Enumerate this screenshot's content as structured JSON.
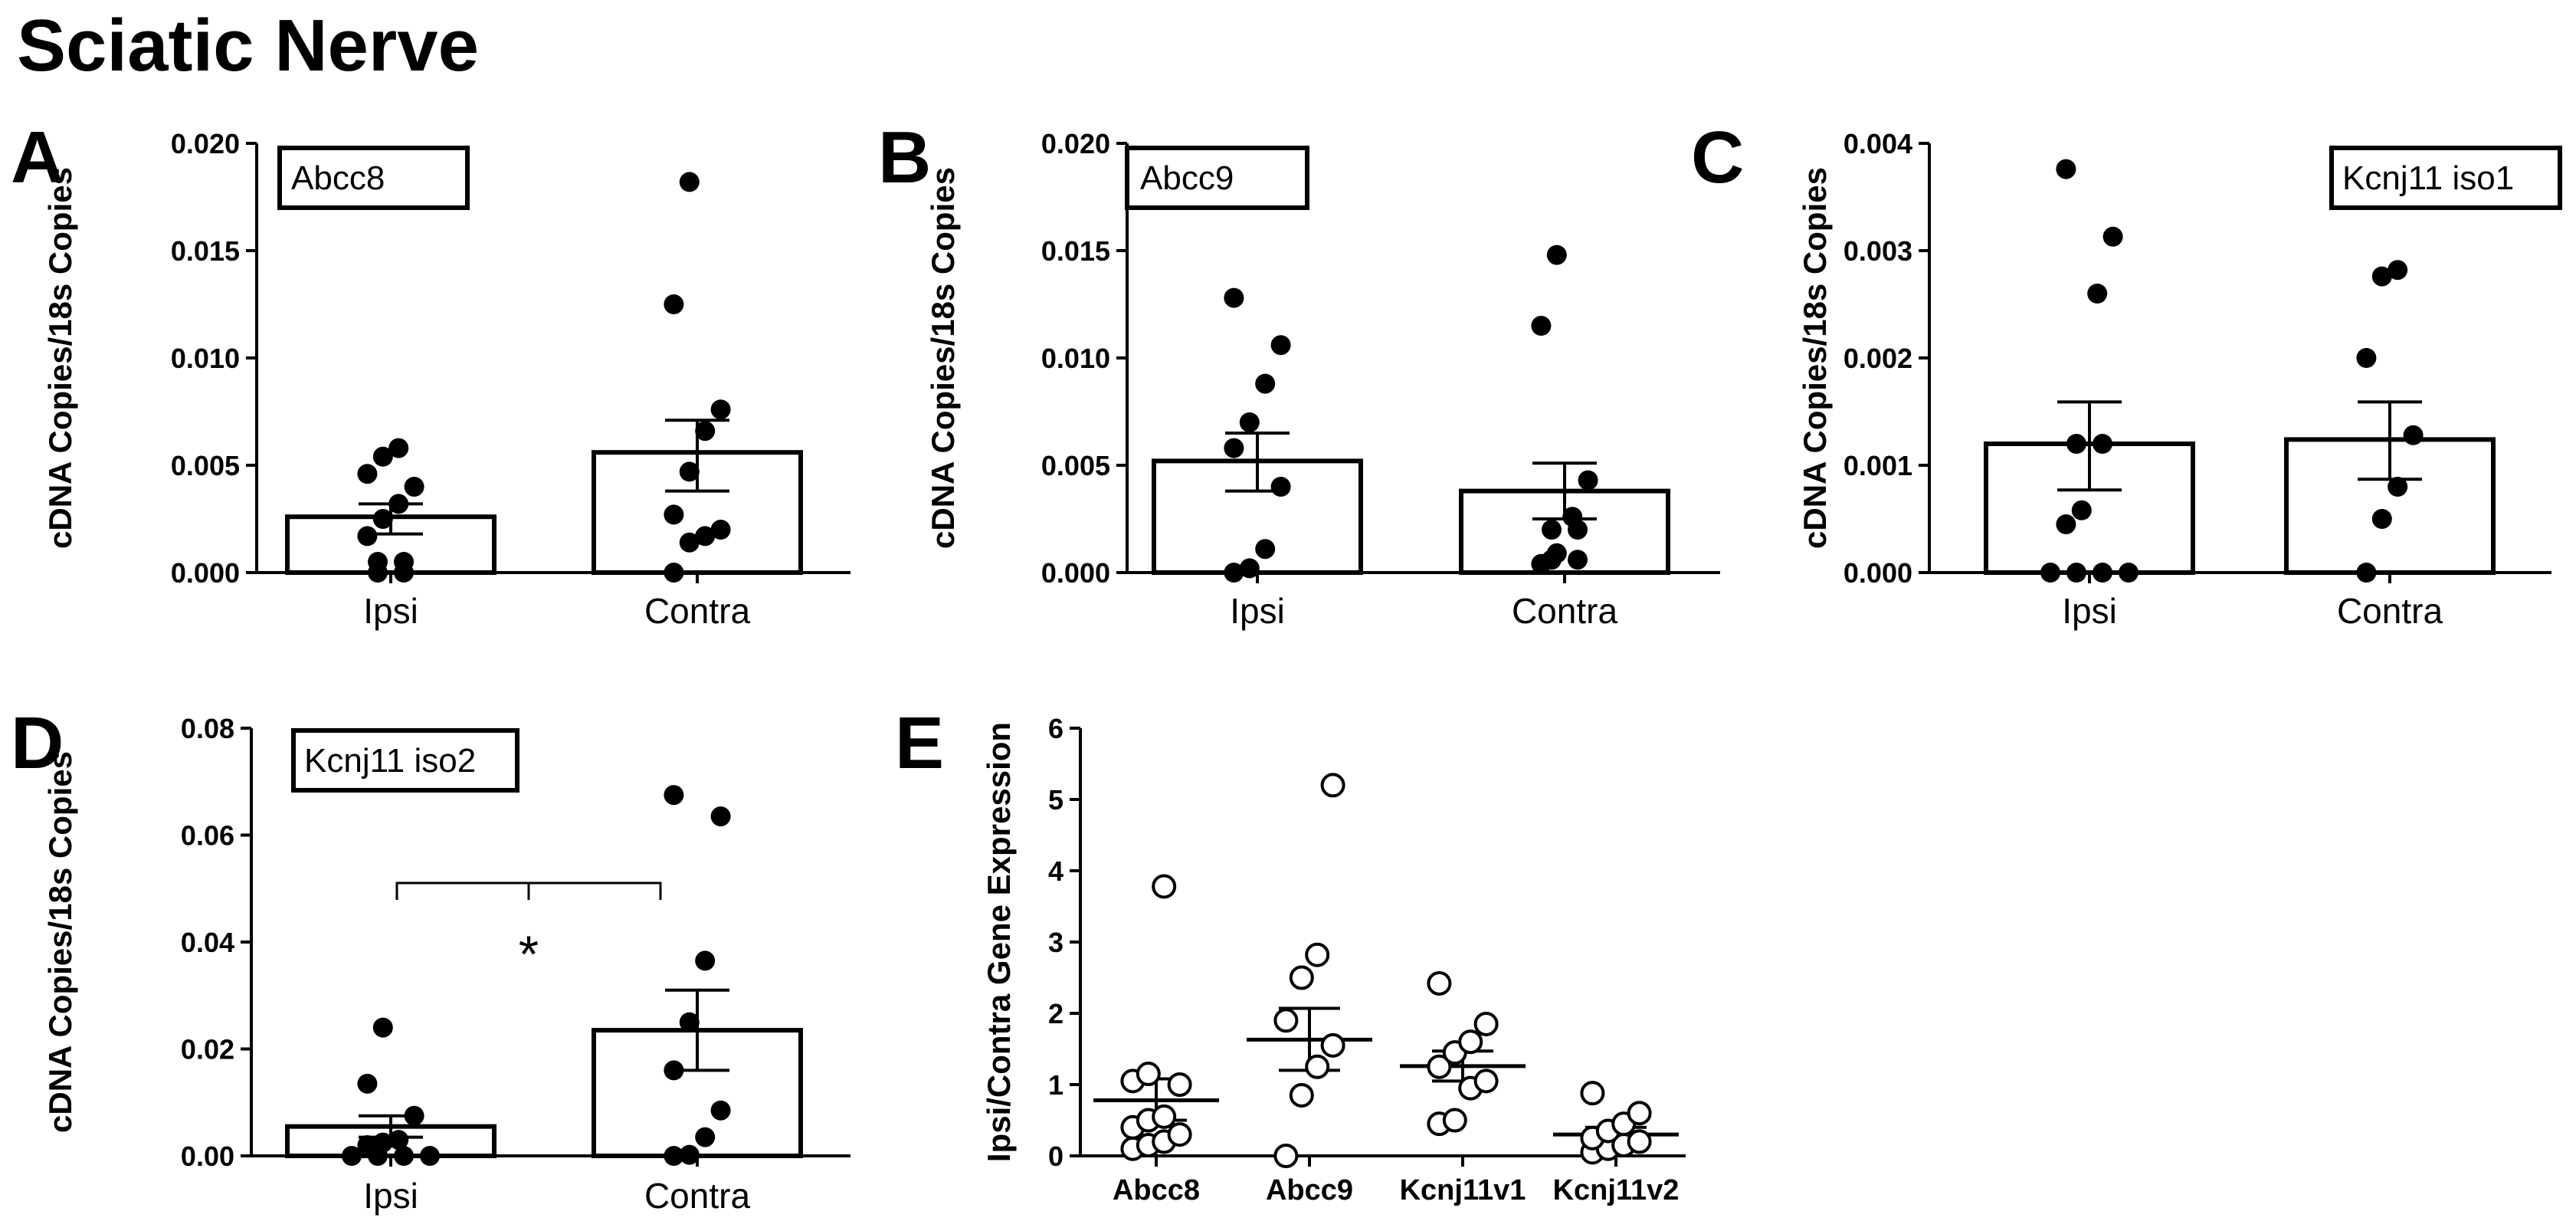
{
  "figure_title": "Sciatic Nerve",
  "significance_label": "*",
  "chart_data": [
    {
      "panel": "A",
      "type": "bar",
      "gene_label": "Abcc8",
      "ylabel": "cDNA Copies/18s Copies",
      "ylim": [
        0,
        0.02
      ],
      "yticks": [
        "0.000",
        "0.005",
        "0.010",
        "0.015",
        "0.020"
      ],
      "categories": [
        "Ipsi",
        "Contra"
      ],
      "bars": [
        {
          "name": "Ipsi",
          "mean": 0.0026,
          "sem_low": 0.0018,
          "sem_high": 0.0032,
          "points": [
            0.0,
            0.0,
            0.0005,
            0.0005,
            0.0017,
            0.0025,
            0.0032,
            0.004,
            0.0046,
            0.0054,
            0.0058
          ]
        },
        {
          "name": "Contra",
          "mean": 0.0056,
          "sem_low": 0.0038,
          "sem_high": 0.0071,
          "points": [
            0.0,
            0.0014,
            0.0017,
            0.002,
            0.0027,
            0.0047,
            0.0066,
            0.0076,
            0.0125,
            0.0182
          ]
        }
      ]
    },
    {
      "panel": "B",
      "type": "bar",
      "gene_label": "Abcc9",
      "ylabel": "cDNA Copies/18s Copies",
      "ylim": [
        0,
        0.02
      ],
      "yticks": [
        "0.000",
        "0.005",
        "0.010",
        "0.015",
        "0.020"
      ],
      "categories": [
        "Ipsi",
        "Contra"
      ],
      "bars": [
        {
          "name": "Ipsi",
          "mean": 0.0052,
          "sem_low": 0.0038,
          "sem_high": 0.0065,
          "points": [
            0.0,
            0.0002,
            0.0011,
            0.004,
            0.0058,
            0.007,
            0.0088,
            0.0106,
            0.0128
          ]
        },
        {
          "name": "Contra",
          "mean": 0.0038,
          "sem_low": 0.0025,
          "sem_high": 0.0051,
          "points": [
            0.0004,
            0.0006,
            0.0006,
            0.0009,
            0.002,
            0.002,
            0.0026,
            0.0043,
            0.0115,
            0.0148
          ]
        }
      ]
    },
    {
      "panel": "C",
      "type": "bar",
      "gene_label": "Kcnj11 iso1",
      "ylabel": "cDNA Copies/18s Copies",
      "ylim": [
        0,
        0.004
      ],
      "yticks": [
        "0.000",
        "0.001",
        "0.002",
        "0.003",
        "0.004"
      ],
      "categories": [
        "Ipsi",
        "Contra"
      ],
      "bars": [
        {
          "name": "Ipsi",
          "mean": 0.0012,
          "sem_low": 0.00077,
          "sem_high": 0.00159,
          "points": [
            0.0,
            0.0,
            0.0,
            0.0,
            0.00045,
            0.00058,
            0.0012,
            0.0012,
            0.0026,
            0.00313,
            0.00376
          ]
        },
        {
          "name": "Contra",
          "mean": 0.00124,
          "sem_low": 0.00087,
          "sem_high": 0.00159,
          "points": [
            0.0,
            0.0005,
            0.0008,
            0.00128,
            0.002,
            0.00276,
            0.00282
          ]
        }
      ]
    },
    {
      "panel": "D",
      "type": "bar",
      "gene_label": "Kcnj11 iso2",
      "ylabel": "cDNA Copies/18s Copies",
      "ylim": [
        0,
        0.08
      ],
      "yticks": [
        "0.00",
        "0.02",
        "0.04",
        "0.06",
        "0.08"
      ],
      "categories": [
        "Ipsi",
        "Contra"
      ],
      "bars": [
        {
          "name": "Ipsi",
          "mean": 0.0055,
          "sem_low": 0.0035,
          "sem_high": 0.0075,
          "points": [
            0.0,
            0.0,
            0.0,
            0.0,
            0.002,
            0.0025,
            0.003,
            0.0075,
            0.0135,
            0.024
          ]
        },
        {
          "name": "Contra",
          "mean": 0.0235,
          "sem_low": 0.016,
          "sem_high": 0.031,
          "points": [
            0.0,
            0.0002,
            0.0035,
            0.0085,
            0.016,
            0.025,
            0.0365,
            0.0635,
            0.0675
          ]
        }
      ]
    },
    {
      "panel": "E",
      "type": "scatter",
      "ylabel": "Ipsi/Contra Gene Expression",
      "ylim": [
        0,
        6
      ],
      "yticks": [
        "0",
        "1",
        "2",
        "3",
        "4",
        "5",
        "6"
      ],
      "categories": [
        "Abcc8",
        "Abcc9",
        "Kcnj11v1",
        "Kcnj11v2"
      ],
      "groups": [
        {
          "name": "Abcc8",
          "mean": 0.78,
          "sem_low": 0.5,
          "sem_high": 1.08,
          "points": [
            0.1,
            0.15,
            0.2,
            0.3,
            0.4,
            0.5,
            0.55,
            1.0,
            1.05,
            1.15,
            3.78
          ]
        },
        {
          "name": "Abcc9",
          "mean": 1.63,
          "sem_low": 1.2,
          "sem_high": 2.07,
          "points": [
            0.0,
            0.85,
            1.25,
            1.55,
            1.9,
            2.5,
            2.82,
            5.2
          ]
        },
        {
          "name": "Kcnj11v1",
          "mean": 1.26,
          "sem_low": 1.05,
          "sem_high": 1.47,
          "points": [
            0.45,
            0.5,
            0.95,
            1.05,
            1.25,
            1.45,
            1.6,
            1.85,
            2.42
          ]
        },
        {
          "name": "Kcnj11v2",
          "mean": 0.3,
          "sem_low": 0.2,
          "sem_high": 0.4,
          "points": [
            0.05,
            0.1,
            0.15,
            0.2,
            0.25,
            0.35,
            0.45,
            0.6,
            0.88
          ]
        }
      ]
    }
  ]
}
